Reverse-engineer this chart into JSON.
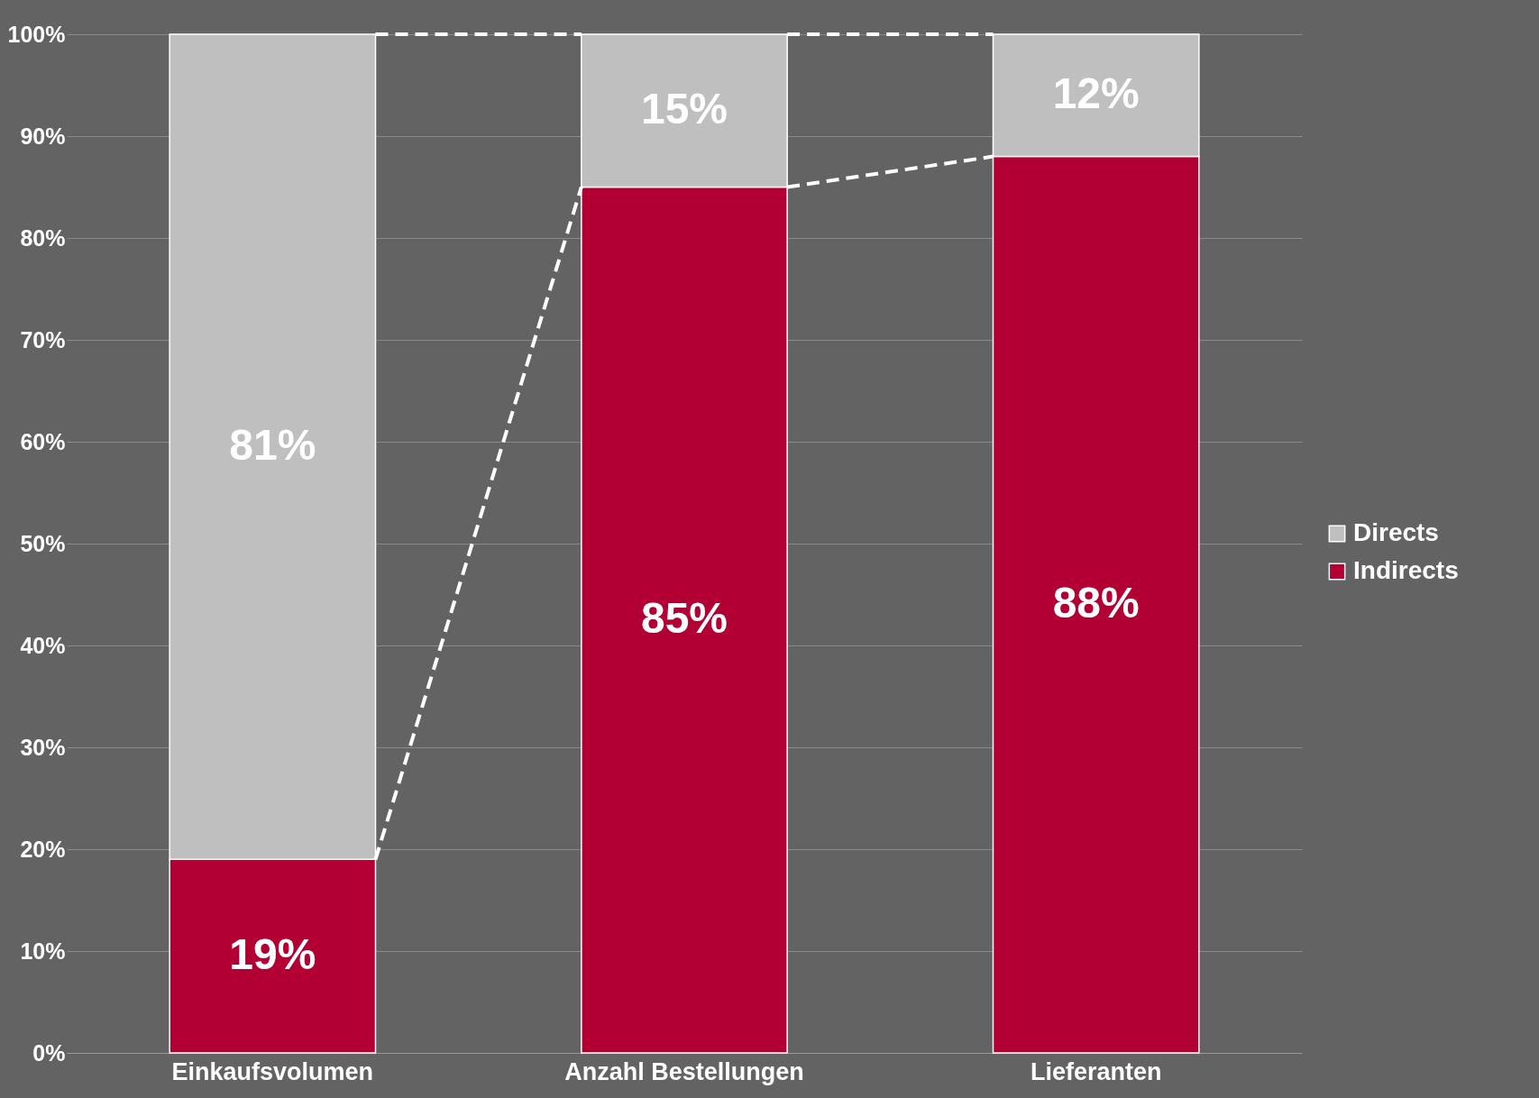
{
  "chart_data": {
    "type": "bar",
    "stacked": true,
    "categories": [
      "Einkaufsvolumen",
      "Anzahl Bestellungen",
      "Lieferanten"
    ],
    "series": [
      {
        "name": "Indirects",
        "color": "#b20034",
        "values": [
          19,
          85,
          88
        ],
        "value_labels": [
          "19%",
          "85%",
          "88%"
        ]
      },
      {
        "name": "Directs",
        "color": "#bfbfbf",
        "values": [
          81,
          15,
          12
        ],
        "value_labels": [
          "81%",
          "15%",
          "12%"
        ]
      }
    ],
    "ylim": [
      0,
      100
    ],
    "yticks": [
      {
        "value": 0,
        "label": "0%"
      },
      {
        "value": 10,
        "label": "10%"
      },
      {
        "value": 20,
        "label": "20%"
      },
      {
        "value": 30,
        "label": "30%"
      },
      {
        "value": 40,
        "label": "40%"
      },
      {
        "value": 50,
        "label": "50%"
      },
      {
        "value": 60,
        "label": "60%"
      },
      {
        "value": 70,
        "label": "70%"
      },
      {
        "value": 80,
        "label": "80%"
      },
      {
        "value": 90,
        "label": "90%"
      },
      {
        "value": 100,
        "label": "100%"
      }
    ],
    "grid": "y",
    "legend": "right"
  }
}
